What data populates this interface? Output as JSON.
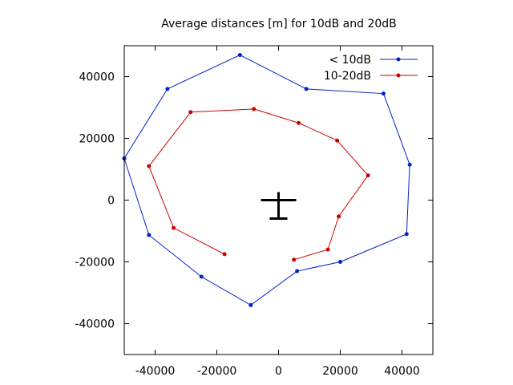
{
  "chart_data": {
    "type": "line",
    "title": "Average distances [m] for 10dB and 20dB",
    "xlabel": "",
    "ylabel": "",
    "xlim": [
      -50000,
      50000
    ],
    "ylim": [
      -50000,
      50000
    ],
    "xticks": [
      -40000,
      -20000,
      0,
      20000,
      40000
    ],
    "yticks": [
      -40000,
      -20000,
      0,
      20000,
      40000
    ],
    "xtick_labels": [
      "-40000",
      "-20000",
      "0",
      "20000",
      "40000"
    ],
    "ytick_labels": [
      "-40000",
      "-20000",
      "0",
      "20000",
      "40000"
    ],
    "grid": false,
    "legend_position": "top-right",
    "series": [
      {
        "name": "< 10dB",
        "color": "#0022cc",
        "points": [
          [
            -50000,
            13500
          ],
          [
            -36000,
            36000
          ],
          [
            -12500,
            47000
          ],
          [
            9000,
            36000
          ],
          [
            34000,
            34500
          ],
          [
            42500,
            11500
          ],
          [
            41500,
            -11000
          ],
          [
            20000,
            -20000
          ],
          [
            6000,
            -23000
          ],
          [
            -9000,
            -34000
          ],
          [
            -25000,
            -24800
          ],
          [
            -42000,
            -11300
          ],
          [
            -50000,
            13500
          ]
        ]
      },
      {
        "name": "10-20dB",
        "color": "#cc0000",
        "points": [
          [
            -17500,
            -17500
          ],
          [
            -34000,
            -9000
          ],
          [
            -42000,
            11000
          ],
          [
            -28500,
            28500
          ],
          [
            -8000,
            29500
          ],
          [
            6500,
            25000
          ],
          [
            19000,
            19300
          ],
          [
            29000,
            8000
          ],
          [
            19500,
            -5300
          ],
          [
            16000,
            -16000
          ],
          [
            5000,
            -19300
          ]
        ]
      }
    ],
    "annotation_icon": "aircraft-icon"
  }
}
